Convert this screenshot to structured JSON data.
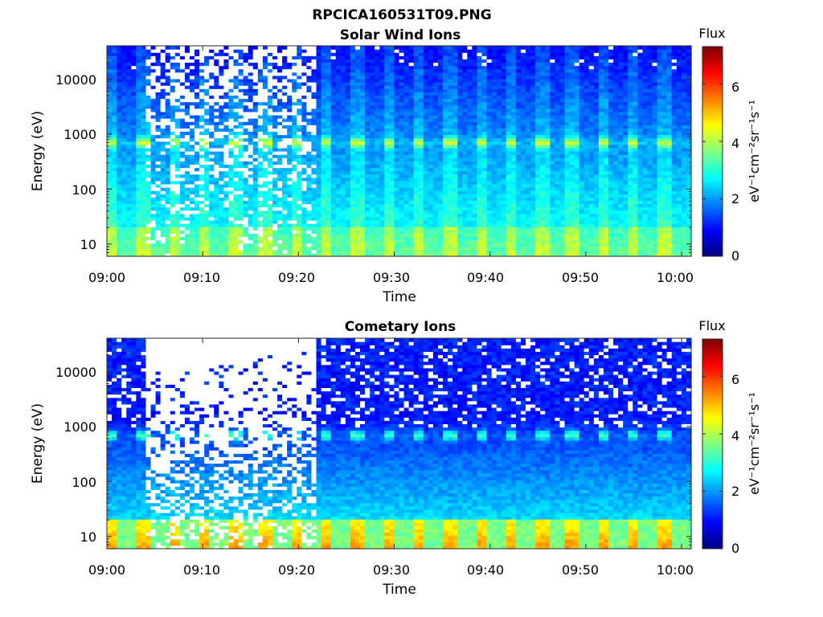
{
  "figure_title": "RPCICA160531T09.PNG",
  "chart_data": [
    {
      "type": "heatmap",
      "title": "Solar Wind Ions",
      "xlabel": "Time",
      "ylabel": "Energy (eV)",
      "yscale": "log",
      "x_ticks": [
        "09:00",
        "09:10",
        "09:20",
        "09:30",
        "09:40",
        "09:50",
        "10:00"
      ],
      "y_ticks": [
        "10",
        "100",
        "1000",
        "10000"
      ],
      "x_range": [
        "09:00",
        "10:01"
      ],
      "y_range": [
        6,
        40000
      ],
      "colorbar": {
        "title": "Flux",
        "label": "eV⁻¹cm⁻²sr⁻¹s⁻¹",
        "ticks": [
          "0",
          "2",
          "4",
          "6"
        ],
        "range": [
          0,
          7.3
        ],
        "colormap": "jet"
      },
      "features": {
        "peak_energy_eV": 700,
        "peak_flux": 4.0,
        "sweep_period_min": 3.2,
        "noisy_interval": [
          "09:04",
          "09:22"
        ]
      }
    },
    {
      "type": "heatmap",
      "title": "Cometary Ions",
      "xlabel": "Time",
      "ylabel": "Energy (eV)",
      "yscale": "log",
      "x_ticks": [
        "09:00",
        "09:10",
        "09:20",
        "09:30",
        "09:40",
        "09:50",
        "10:00"
      ],
      "y_ticks": [
        "10",
        "100",
        "1000",
        "10000"
      ],
      "x_range": [
        "09:00",
        "10:01"
      ],
      "y_range": [
        6,
        40000
      ],
      "colorbar": {
        "title": "Flux",
        "label": "eV⁻¹cm⁻²sr⁻¹s⁻¹",
        "ticks": [
          "0",
          "2",
          "4",
          "6"
        ],
        "range": [
          0,
          7.3
        ],
        "colormap": "jet"
      },
      "features": {
        "peak_energy_eV": 700,
        "peak_flux": 2.9,
        "low_energy_max_flux": 5.3,
        "sweep_period_min": 3.2,
        "noisy_interval": [
          "09:04",
          "09:22"
        ]
      }
    }
  ]
}
